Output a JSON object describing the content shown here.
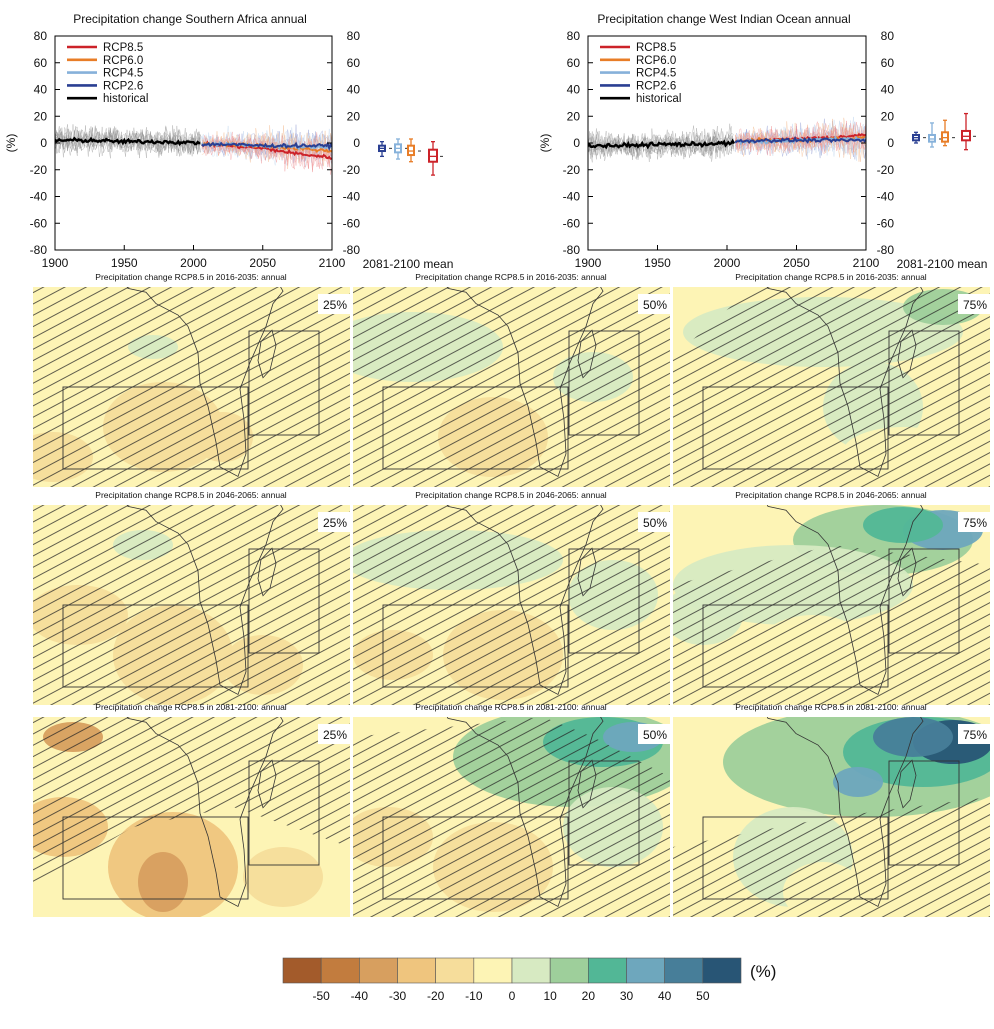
{
  "chart_data": [
    {
      "type": "line",
      "title": "Precipitation change Southern Africa annual",
      "ylabel": "(%)",
      "xlim": [
        1900,
        2100
      ],
      "ylim": [
        -80,
        80
      ],
      "x_ticks": [
        "1900",
        "1950",
        "2000",
        "2050",
        "2100"
      ],
      "y_ticks": [
        "80",
        "60",
        "40",
        "20",
        "0",
        "-20",
        "-40",
        "-60",
        "-80"
      ],
      "legend_position": "top-left",
      "series": [
        {
          "name": "RCP8.5",
          "color": "#cc2229",
          "x": [
            2006,
            2025,
            2050,
            2075,
            2100
          ],
          "y": [
            -1,
            -2,
            -4,
            -8,
            -11
          ]
        },
        {
          "name": "RCP6.0",
          "color": "#e87d27",
          "x": [
            2006,
            2025,
            2050,
            2075,
            2100
          ],
          "y": [
            -1,
            -1,
            -2,
            -4,
            -6
          ]
        },
        {
          "name": "RCP4.5",
          "color": "#86b1da",
          "x": [
            2006,
            2025,
            2050,
            2075,
            2100
          ],
          "y": [
            -1,
            -1,
            -2,
            -3,
            -3
          ]
        },
        {
          "name": "RCP2.6",
          "color": "#2a3f92",
          "x": [
            2006,
            2025,
            2050,
            2075,
            2100
          ],
          "y": [
            -1,
            -1,
            -2,
            -2,
            -2
          ]
        },
        {
          "name": "historical",
          "color": "#000000",
          "x": [
            1900,
            1925,
            1950,
            1975,
            2005
          ],
          "y": [
            2,
            2,
            1,
            1,
            0
          ]
        }
      ],
      "boxplot_label": "2081-2100 mean",
      "boxplots": [
        {
          "series": "RCP2.6",
          "min": -10,
          "q1": -6,
          "median": -4,
          "q3": -2,
          "max": 1
        },
        {
          "series": "RCP4.5",
          "min": -12,
          "q1": -7,
          "median": -4,
          "q3": -1,
          "max": 3
        },
        {
          "series": "RCP6.0",
          "min": -14,
          "q1": -9,
          "median": -6,
          "q3": -2,
          "max": 3
        },
        {
          "series": "RCP8.5",
          "min": -24,
          "q1": -14,
          "median": -10,
          "q3": -5,
          "max": 1
        }
      ]
    },
    {
      "type": "line",
      "title": "Precipitation change West Indian Ocean annual",
      "ylabel": "(%)",
      "xlim": [
        1900,
        2100
      ],
      "ylim": [
        -80,
        80
      ],
      "x_ticks": [
        "1900",
        "1950",
        "2000",
        "2050",
        "2100"
      ],
      "y_ticks": [
        "80",
        "60",
        "40",
        "20",
        "0",
        "-20",
        "-40",
        "-60",
        "-80"
      ],
      "legend_position": "top-left",
      "series": [
        {
          "name": "RCP8.5",
          "color": "#cc2229",
          "x": [
            2006,
            2025,
            2050,
            2075,
            2100
          ],
          "y": [
            1,
            2,
            3,
            4,
            6
          ]
        },
        {
          "name": "RCP6.0",
          "color": "#e87d27",
          "x": [
            2006,
            2025,
            2050,
            2075,
            2100
          ],
          "y": [
            1,
            2,
            2,
            3,
            4
          ]
        },
        {
          "name": "RCP4.5",
          "color": "#86b1da",
          "x": [
            2006,
            2025,
            2050,
            2075,
            2100
          ],
          "y": [
            1,
            1,
            2,
            3,
            3
          ]
        },
        {
          "name": "RCP2.6",
          "color": "#2a3f92",
          "x": [
            2006,
            2025,
            2050,
            2075,
            2100
          ],
          "y": [
            1,
            2,
            2,
            2,
            2
          ]
        },
        {
          "name": "historical",
          "color": "#000000",
          "x": [
            1900,
            1925,
            1950,
            1975,
            2005
          ],
          "y": [
            -2,
            -2,
            -1,
            -1,
            0
          ]
        }
      ],
      "boxplot_label": "2081-2100 mean",
      "boxplots": [
        {
          "series": "RCP2.6",
          "min": 0,
          "q1": 2,
          "median": 4,
          "q3": 6,
          "max": 8
        },
        {
          "series": "RCP4.5",
          "min": -3,
          "q1": 1,
          "median": 3,
          "q3": 6,
          "max": 15
        },
        {
          "series": "RCP6.0",
          "min": -2,
          "q1": 1,
          "median": 4,
          "q3": 8,
          "max": 17
        },
        {
          "series": "RCP8.5",
          "min": -5,
          "q1": 2,
          "median": 5,
          "q3": 9,
          "max": 22
        }
      ]
    },
    {
      "type": "heatmap",
      "panels": [
        {
          "title": "Precipitation change RCP8.5 in 2016-2035: annual",
          "percentile": "25%"
        },
        {
          "title": "Precipitation change RCP8.5 in 2016-2035: annual",
          "percentile": "50%"
        },
        {
          "title": "Precipitation change RCP8.5 in 2016-2035: annual",
          "percentile": "75%"
        },
        {
          "title": "Precipitation change RCP8.5 in 2046-2065: annual",
          "percentile": "25%"
        },
        {
          "title": "Precipitation change RCP8.5 in 2046-2065: annual",
          "percentile": "50%"
        },
        {
          "title": "Precipitation change RCP8.5 in 2046-2065: annual",
          "percentile": "75%"
        },
        {
          "title": "Precipitation change RCP8.5 in 2081-2100: annual",
          "percentile": "25%"
        },
        {
          "title": "Precipitation change RCP8.5 in 2081-2100: annual",
          "percentile": "50%"
        },
        {
          "title": "Precipitation change RCP8.5 in 2081-2100: annual",
          "percentile": "75%"
        }
      ],
      "colorbar": {
        "unit": "(%)",
        "tick_labels": [
          "-50",
          "-40",
          "-30",
          "-20",
          "-10",
          "0",
          "10",
          "20",
          "30",
          "40",
          "50"
        ],
        "colors": [
          "#a35b2b",
          "#c27c3e",
          "#d79f5f",
          "#efc57e",
          "#f6dd9b",
          "#fdf4b5",
          "#d7eac2",
          "#9ecf9b",
          "#52b796",
          "#6ea7bd",
          "#477e99",
          "#285575"
        ]
      }
    }
  ]
}
